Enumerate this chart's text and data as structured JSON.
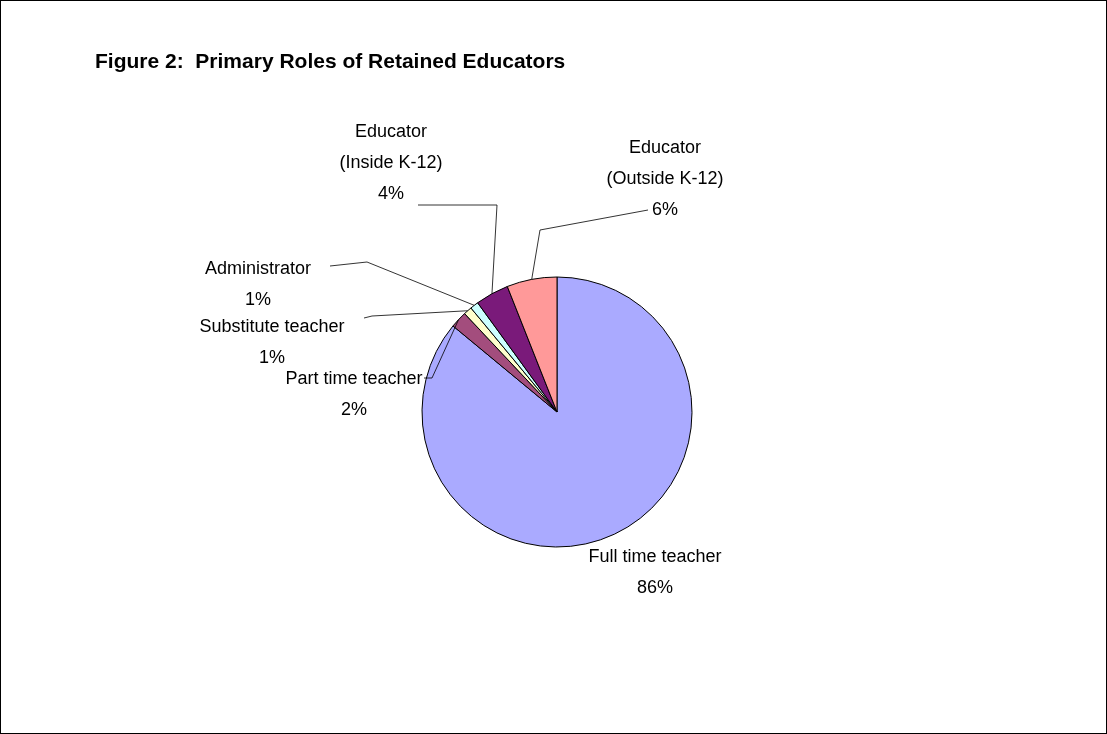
{
  "chart_data": {
    "type": "pie",
    "title": "Figure 2:  Primary Roles of Retained Educators",
    "categories": [
      "Full time teacher",
      "Part time teacher",
      "Substitute teacher",
      "Administrator",
      "Educator\n(Inside K-12)",
      "Educator\n(Outside K-12)"
    ],
    "values": [
      86,
      2,
      1,
      1,
      4,
      6
    ],
    "value_labels": [
      "86%",
      "2%",
      "1%",
      "1%",
      "4%",
      "6%"
    ],
    "colors": [
      "#aaaaff",
      "#a34d7d",
      "#ffffcc",
      "#ccffff",
      "#7a1a7a",
      "#ff9999"
    ]
  }
}
